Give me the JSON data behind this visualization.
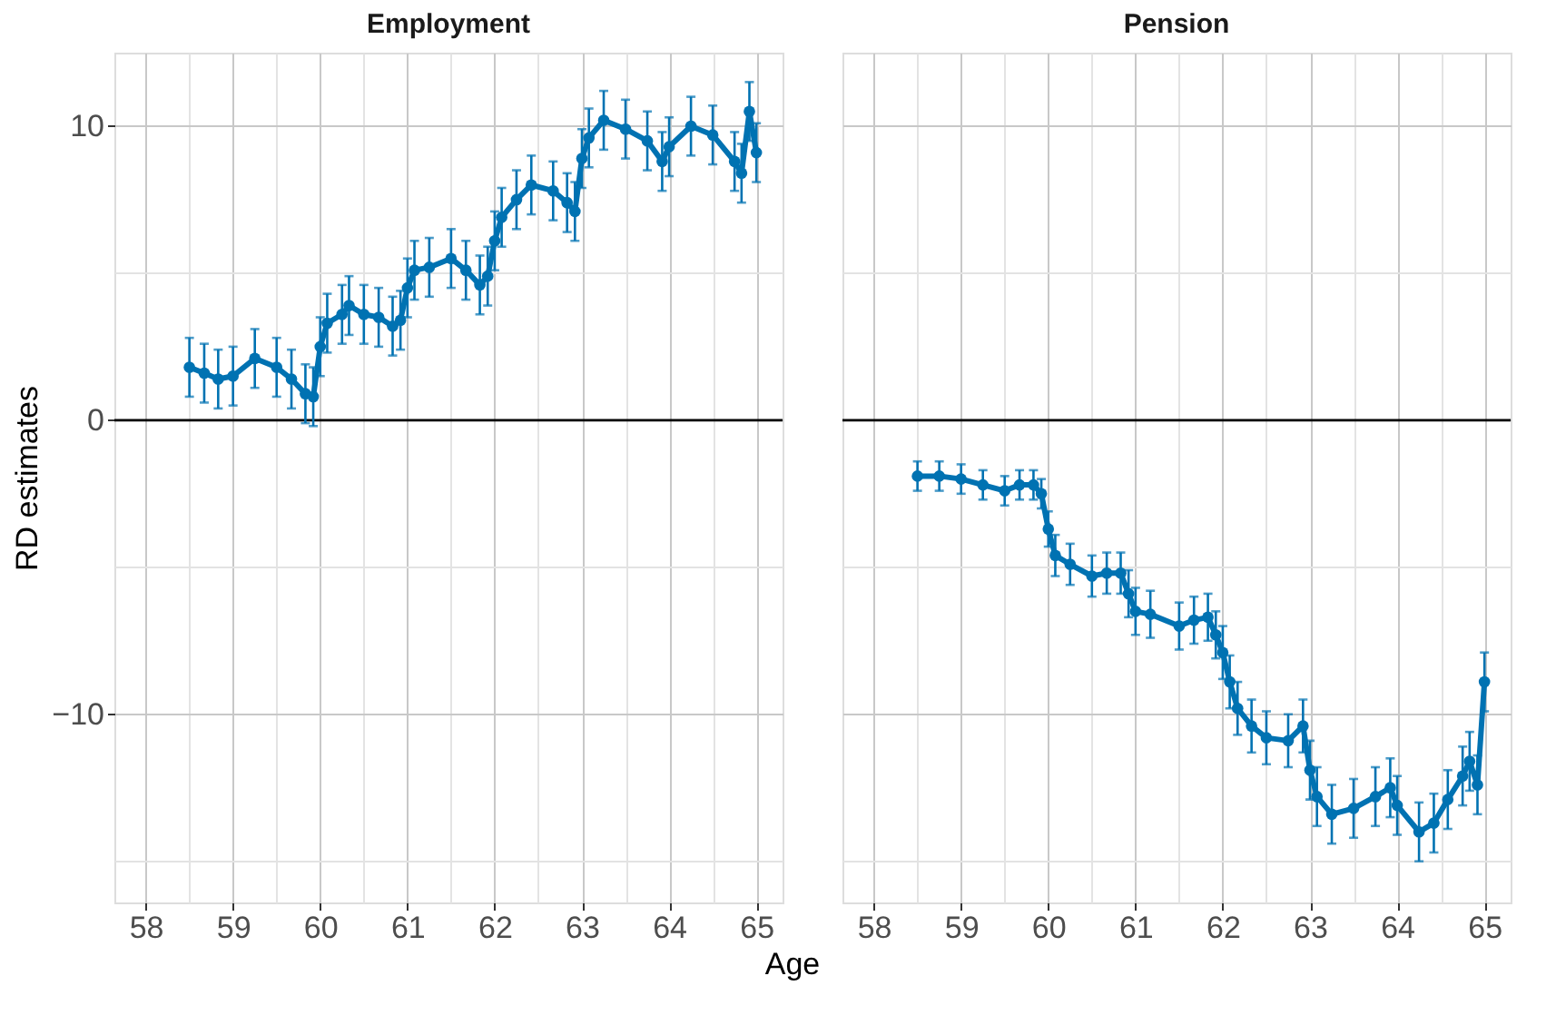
{
  "chart_data": [
    {
      "type": "line",
      "title": "Employment",
      "xlabel": "Age",
      "ylabel": "RD estimates",
      "xlim": [
        57.64,
        65.3
      ],
      "ylim": [
        -16.4,
        12.5
      ],
      "xticks": [
        58,
        {
          "value": 58.5,
          "label": null
        },
        59,
        {
          "value": 59.5,
          "label": null
        },
        60,
        {
          "value": 60.5,
          "label": null
        },
        61,
        {
          "value": 61.5,
          "label": null
        },
        62,
        {
          "value": 62.5,
          "label": null
        },
        63,
        {
          "value": 63.5,
          "label": null
        },
        64,
        {
          "value": 64.5,
          "label": null
        },
        65
      ],
      "yticks": [
        {
          "value": -15,
          "label": null
        },
        {
          "value": -10,
          "label": "−10"
        },
        {
          "value": -5,
          "label": null
        },
        0,
        {
          "value": 5,
          "label": null
        },
        10
      ],
      "grid": true,
      "marker": "circle",
      "line_style": "solid",
      "ref_lines": [
        {
          "axis": "y",
          "value": 0,
          "color": "#000000"
        }
      ],
      "series": [
        {
          "color": "#0072b2",
          "x": [
            58.5,
            58.67,
            58.83,
            59.0,
            59.25,
            59.5,
            59.67,
            59.83,
            59.92,
            60.0,
            60.08,
            60.25,
            60.33,
            60.5,
            60.67,
            60.83,
            60.92,
            61.0,
            61.08,
            61.25,
            61.5,
            61.67,
            61.83,
            61.92,
            62.0,
            62.08,
            62.25,
            62.42,
            62.67,
            62.83,
            62.92,
            63.0,
            63.08,
            63.25,
            63.5,
            63.75,
            63.92,
            64.0,
            64.25,
            64.5,
            64.75,
            64.83,
            64.92,
            65.0
          ],
          "values": [
            1.8,
            1.6,
            1.4,
            1.5,
            2.1,
            1.8,
            1.4,
            0.9,
            0.8,
            2.5,
            3.3,
            3.6,
            3.9,
            3.6,
            3.5,
            3.2,
            3.4,
            4.5,
            5.1,
            5.2,
            5.5,
            5.1,
            4.6,
            4.9,
            6.1,
            6.9,
            7.5,
            8.0,
            7.8,
            7.4,
            7.1,
            8.9,
            9.6,
            10.2,
            9.9,
            9.5,
            8.8,
            9.3,
            10.0,
            9.7,
            8.8,
            8.4,
            10.5,
            9.1
          ],
          "errors": [
            1.0,
            1.0,
            1.0,
            1.0,
            1.0,
            1.0,
            1.0,
            1.0,
            1.0,
            1.0,
            1.0,
            1.0,
            1.0,
            1.0,
            1.0,
            1.0,
            1.0,
            1.0,
            1.0,
            1.0,
            1.0,
            1.0,
            1.0,
            1.0,
            1.0,
            1.0,
            1.0,
            1.0,
            1.0,
            1.0,
            1.0,
            1.0,
            1.0,
            1.0,
            1.0,
            1.0,
            1.0,
            1.0,
            1.0,
            1.0,
            1.0,
            1.0,
            1.0,
            1.0
          ]
        }
      ]
    },
    {
      "type": "line",
      "title": "Pension",
      "xlim": [
        57.64,
        65.3
      ],
      "ylim": [
        -16.4,
        12.5
      ],
      "tick_labels": "x",
      "xticks": [
        58,
        {
          "value": 58.5,
          "label": null
        },
        59,
        {
          "value": 59.5,
          "label": null
        },
        60,
        {
          "value": 60.5,
          "label": null
        },
        61,
        {
          "value": 61.5,
          "label": null
        },
        62,
        {
          "value": 62.5,
          "label": null
        },
        63,
        {
          "value": 63.5,
          "label": null
        },
        64,
        {
          "value": 64.5,
          "label": null
        },
        65
      ],
      "yticks": [
        {
          "value": -15,
          "label": null
        },
        -10,
        {
          "value": -5,
          "label": null
        },
        0,
        {
          "value": 5,
          "label": null
        },
        10
      ],
      "grid": true,
      "marker": "circle",
      "line_style": "solid",
      "ref_lines": [
        {
          "axis": "y",
          "value": 0,
          "color": "#000000"
        }
      ],
      "series": [
        {
          "color": "#0072b2",
          "x": [
            58.5,
            58.75,
            59.0,
            59.25,
            59.5,
            59.67,
            59.83,
            59.92,
            60.0,
            60.08,
            60.25,
            60.5,
            60.67,
            60.83,
            60.92,
            61.0,
            61.17,
            61.5,
            61.67,
            61.83,
            61.92,
            62.0,
            62.08,
            62.17,
            62.33,
            62.5,
            62.75,
            62.92,
            63.0,
            63.08,
            63.25,
            63.5,
            63.75,
            63.92,
            64.0,
            64.25,
            64.42,
            64.58,
            64.75,
            64.83,
            64.92,
            65.0
          ],
          "values": [
            -1.9,
            -1.9,
            -2.0,
            -2.2,
            -2.4,
            -2.2,
            -2.2,
            -2.5,
            -3.7,
            -4.6,
            -4.9,
            -5.3,
            -5.2,
            -5.2,
            -5.9,
            -6.5,
            -6.6,
            -7.0,
            -6.8,
            -6.7,
            -7.3,
            -7.9,
            -8.9,
            -9.8,
            -10.4,
            -10.8,
            -10.9,
            -10.4,
            -11.9,
            -12.8,
            -13.4,
            -13.2,
            -12.8,
            -12.5,
            -13.1,
            -14.0,
            -13.7,
            -12.9,
            -12.1,
            -11.6,
            -12.4,
            -8.9
          ],
          "errors": [
            0.5,
            0.5,
            0.5,
            0.5,
            0.5,
            0.5,
            0.5,
            0.5,
            0.6,
            0.7,
            0.7,
            0.7,
            0.7,
            0.7,
            0.8,
            0.8,
            0.8,
            0.8,
            0.8,
            0.8,
            0.8,
            0.9,
            0.9,
            0.9,
            0.9,
            0.9,
            0.9,
            0.9,
            1.0,
            1.0,
            1.0,
            1.0,
            1.0,
            1.0,
            1.0,
            1.0,
            1.0,
            1.0,
            1.0,
            1.0,
            1.0,
            1.0
          ]
        }
      ]
    }
  ]
}
